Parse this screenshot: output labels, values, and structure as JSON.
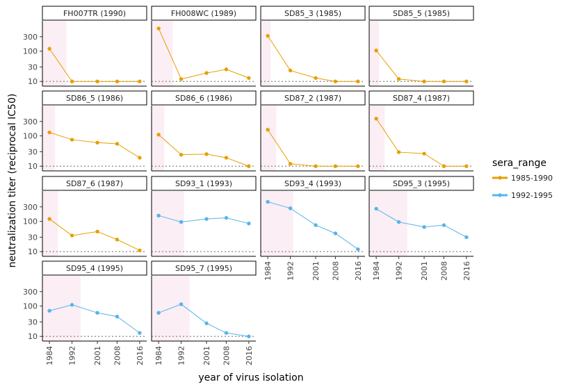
{
  "chart_data": {
    "type": "line",
    "facet_by": "serum",
    "xlabel": "year of virus isolation",
    "ylabel": "neutralization titer (reciprocal IC50)",
    "x_ticks": [
      1984,
      1992,
      2001,
      2008,
      2016
    ],
    "y_ticks": [
      10,
      30,
      100,
      300
    ],
    "y_scale": "log",
    "xlim": [
      1981.5,
      2018.5
    ],
    "ylim": [
      7,
      1000
    ],
    "limit_of_detection": 10,
    "legend": {
      "title": "sera_range",
      "position": "right",
      "entries": [
        {
          "label": "1985-1990",
          "color": "#E69F00"
        },
        {
          "label": "1992-1995",
          "color": "#56B4E9"
        }
      ]
    },
    "shade_color": "#fbeef5",
    "panels": [
      {
        "title": "FH007TR (1990)",
        "group": "1985-1990",
        "shade": [
          1981.5,
          1990
        ],
        "values": [
          120,
          10,
          10,
          10,
          10
        ]
      },
      {
        "title": "FH008WC (1989)",
        "group": "1985-1990",
        "shade": [
          1981.5,
          1989
        ],
        "values": [
          560,
          12,
          19,
          25,
          13
        ]
      },
      {
        "title": "SD85_3 (1985)",
        "group": "1985-1990",
        "shade": [
          1981.5,
          1985
        ],
        "values": [
          320,
          23,
          13,
          10,
          10
        ]
      },
      {
        "title": "SD85_5 (1985)",
        "group": "1985-1990",
        "shade": [
          1981.5,
          1985
        ],
        "values": [
          105,
          12,
          10,
          10,
          10
        ]
      },
      {
        "title": "SD86_5 (1986)",
        "group": "1985-1990",
        "shade": [
          1981.5,
          1986
        ],
        "values": [
          130,
          75,
          60,
          55,
          19
        ]
      },
      {
        "title": "SD86_6 (1986)",
        "group": "1985-1990",
        "shade": [
          1981.5,
          1986
        ],
        "values": [
          110,
          24,
          25,
          19,
          10
        ]
      },
      {
        "title": "SD87_2 (1987)",
        "group": "1985-1990",
        "shade": [
          1981.5,
          1987
        ],
        "values": [
          160,
          12,
          10,
          10,
          10
        ]
      },
      {
        "title": "SD87_4 (1987)",
        "group": "1985-1990",
        "shade": [
          1981.5,
          1987
        ],
        "values": [
          370,
          29,
          26,
          10,
          10
        ]
      },
      {
        "title": "SD87_6 (1987)",
        "group": "1985-1990",
        "shade": [
          1981.5,
          1987
        ],
        "values": [
          120,
          34,
          46,
          25,
          11
        ]
      },
      {
        "title": "SD93_1 (1993)",
        "group": "1992-1995",
        "shade": [
          1981.5,
          1993
        ],
        "values": [
          155,
          95,
          120,
          130,
          85
        ]
      },
      {
        "title": "SD93_4 (1993)",
        "group": "1992-1995",
        "shade": [
          1981.5,
          1993
        ],
        "values": [
          440,
          270,
          75,
          40,
          12
        ]
      },
      {
        "title": "SD95_3 (1995)",
        "group": "1992-1995",
        "shade": [
          1981.5,
          1995
        ],
        "values": [
          260,
          95,
          65,
          75,
          30
        ]
      },
      {
        "title": "SD95_4 (1995)",
        "group": "1992-1995",
        "shade": [
          1981.5,
          1995
        ],
        "values": [
          70,
          110,
          60,
          45,
          13
        ]
      },
      {
        "title": "SD95_7 (1995)",
        "group": "1992-1995",
        "shade": [
          1981.5,
          1995
        ],
        "values": [
          60,
          115,
          27,
          13,
          10
        ]
      }
    ]
  }
}
